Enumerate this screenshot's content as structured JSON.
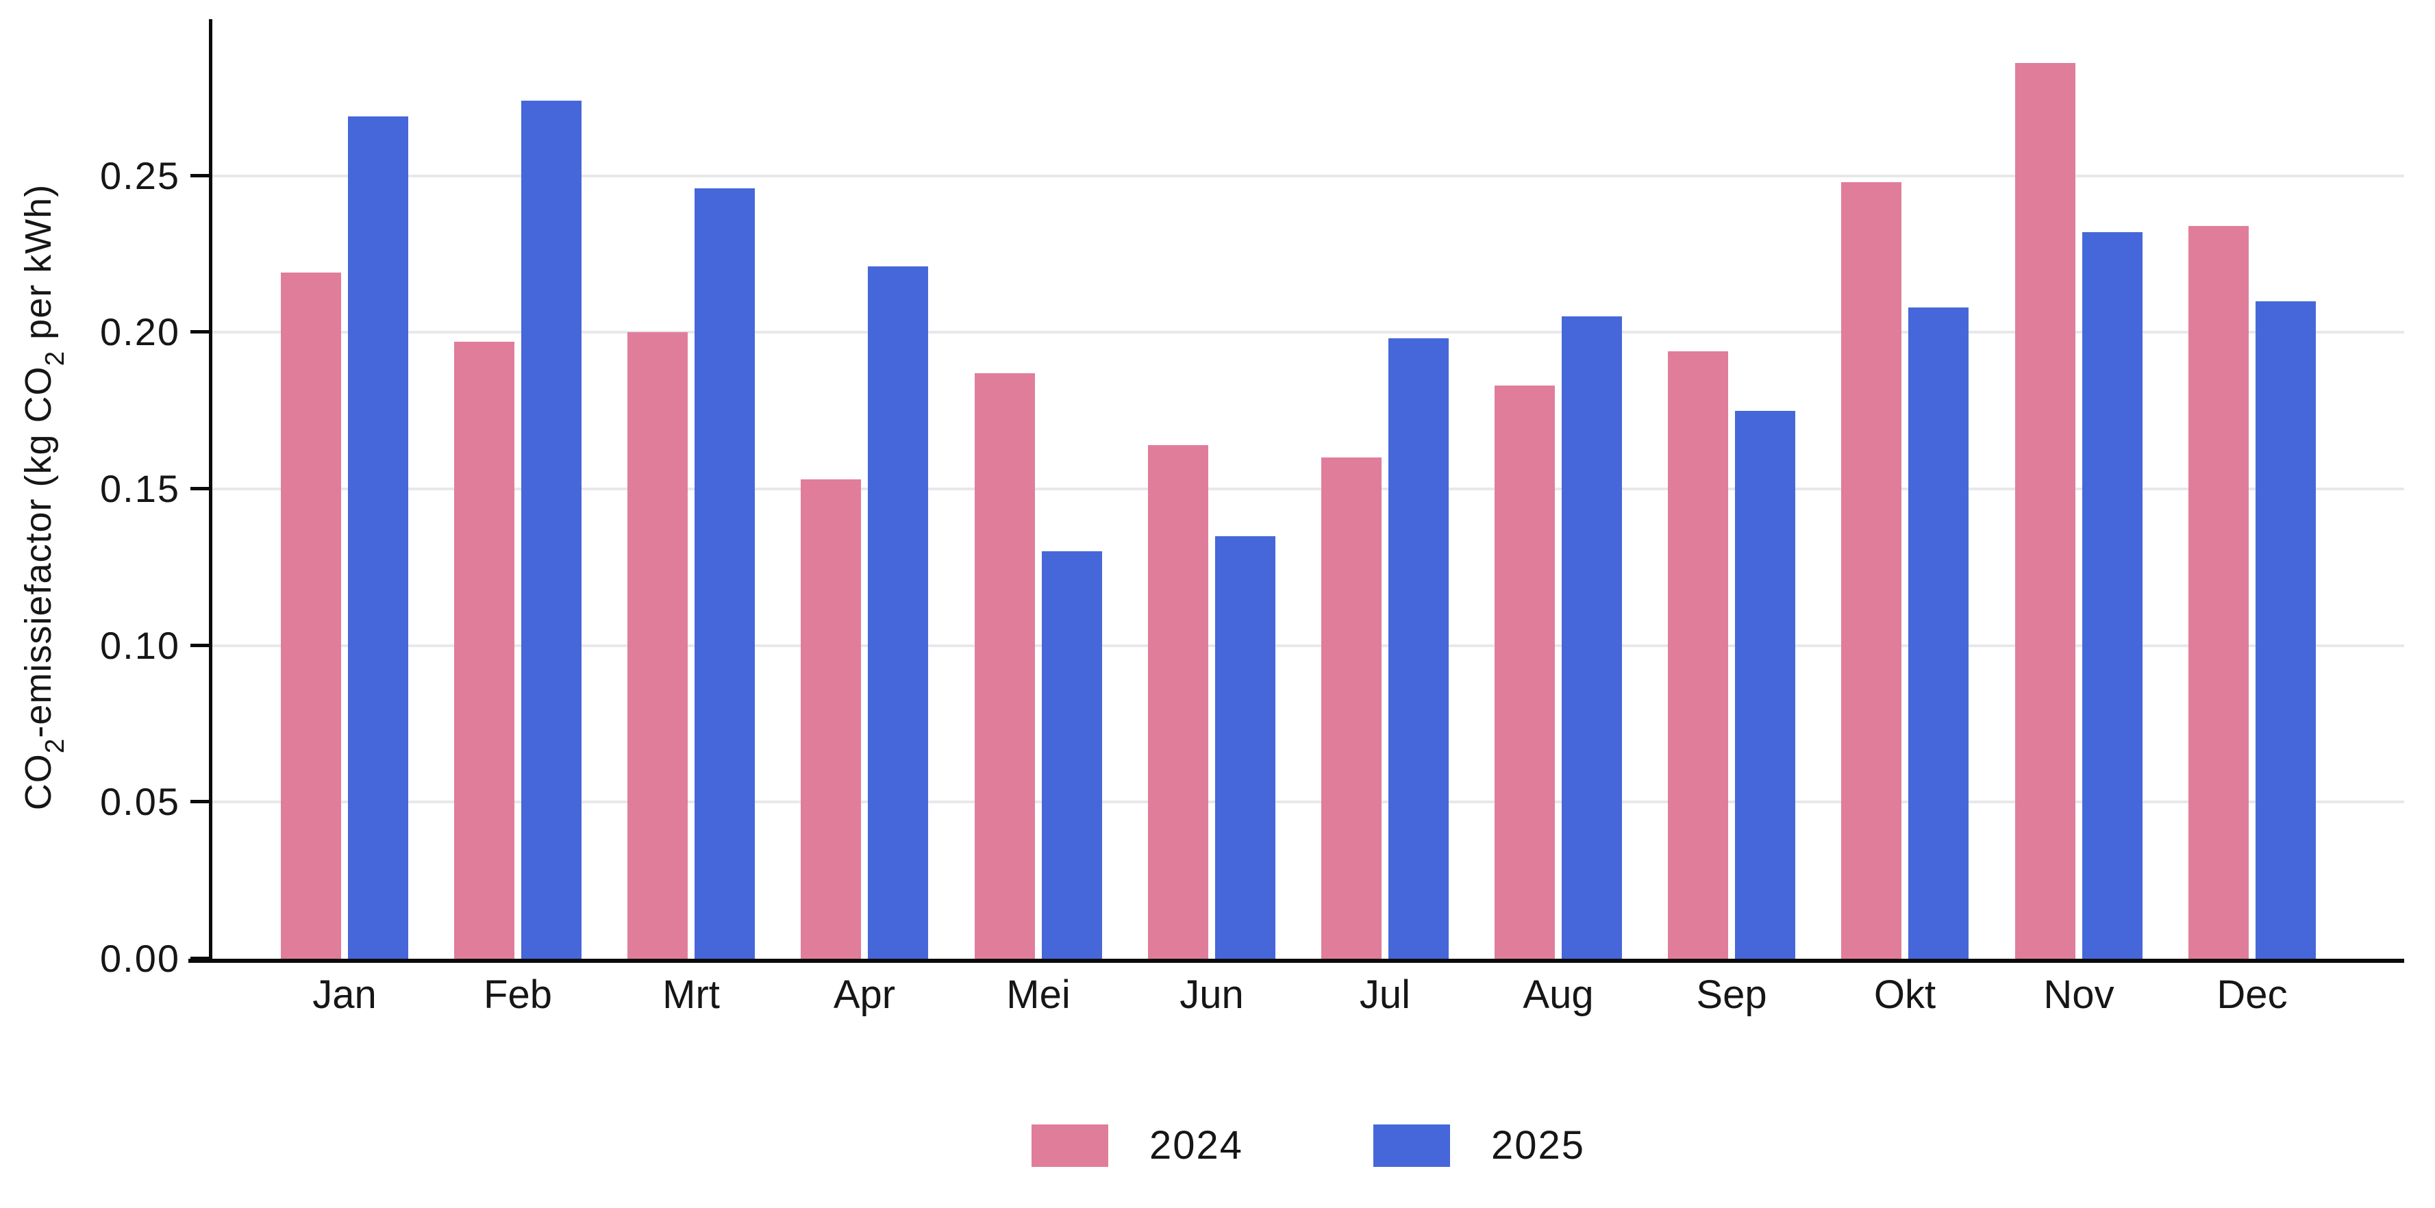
{
  "chart_data": {
    "type": "bar",
    "title": "",
    "categories": [
      "Jan",
      "Feb",
      "Mrt",
      "Apr",
      "Mei",
      "Jun",
      "Jul",
      "Aug",
      "Sep",
      "Okt",
      "Nov",
      "Dec"
    ],
    "series": [
      {
        "name": "2024",
        "color": "#e07d9b",
        "values": [
          0.219,
          0.197,
          0.2,
          0.153,
          0.187,
          0.164,
          0.16,
          0.183,
          0.194,
          0.248,
          0.286,
          0.234
        ]
      },
      {
        "name": "2025",
        "color": "#4667d9",
        "values": [
          0.269,
          0.274,
          0.246,
          0.221,
          0.13,
          0.135,
          0.198,
          0.205,
          0.175,
          0.208,
          0.232,
          0.21
        ]
      }
    ],
    "ylabel": "CO₂-emissiefactor (kg CO₂ per kWh)",
    "ylabel_parts": [
      {
        "t": "CO"
      },
      {
        "t": "2",
        "sub": true
      },
      {
        "t": "-emissiefactor (kg CO"
      },
      {
        "t": "2",
        "sub": true
      },
      {
        "t": " per kWh)"
      }
    ],
    "xlabel": "",
    "yticks": [
      0.0,
      0.05,
      0.1,
      0.15,
      0.2,
      0.25
    ],
    "ytick_labels": [
      "0.00",
      "0.05",
      "0.10",
      "0.15",
      "0.20",
      "0.25"
    ],
    "ylim": [
      0,
      0.3
    ],
    "grid": true,
    "legend_position": "bottom",
    "legend_entries": [
      "2024",
      "2025"
    ]
  },
  "colors": {
    "series_2024": "#e07d9b",
    "series_2025": "#4667d9",
    "gridline": "#e8e8ec",
    "axis": "#0a0a0a",
    "text": "#161616",
    "background": "#ffffff"
  }
}
